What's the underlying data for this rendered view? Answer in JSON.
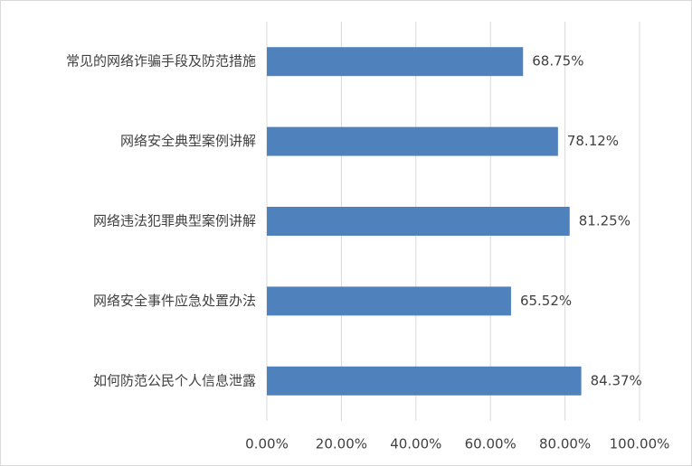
{
  "chart_data": {
    "type": "hbar",
    "categories": [
      "常见的网络诈骗手段及防范措施",
      "网络安全典型案例讲解",
      "网络违法犯罪典型案例讲解",
      "网络安全事件应急处置办法",
      "如何防范公民个人信息泄露"
    ],
    "values": [
      68.75,
      78.12,
      81.25,
      65.52,
      84.37
    ],
    "value_labels": [
      "68.75%",
      "78.12%",
      "81.25%",
      "65.52%",
      "84.37%"
    ],
    "color": "#4f81bd",
    "xlim": [
      0,
      100
    ],
    "xticks": [
      {
        "value": 0,
        "label": "0.00%"
      },
      {
        "value": 20,
        "label": "20.00%"
      },
      {
        "value": 40,
        "label": "40.00%"
      },
      {
        "value": 60,
        "label": "60.00%"
      },
      {
        "value": 80,
        "label": "80.00%"
      },
      {
        "value": 100,
        "label": "100.00%"
      }
    ],
    "grid": true
  }
}
